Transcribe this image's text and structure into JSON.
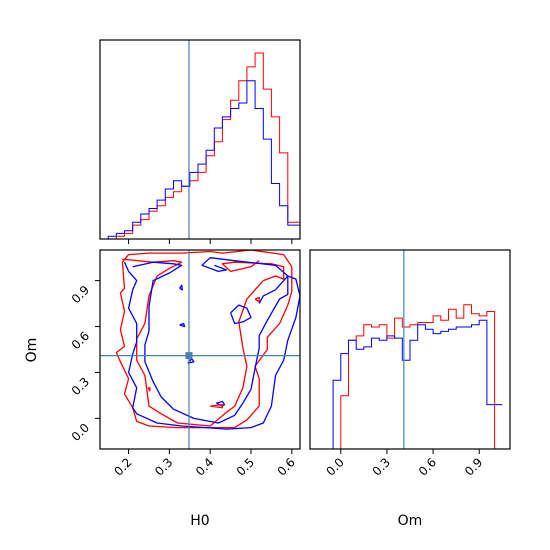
{
  "chart_data": {
    "type": "corner",
    "params": [
      {
        "name": "H0",
        "range": [
          0.13,
          0.62
        ],
        "ticks": [
          "0.2",
          "0.3",
          "0.4",
          "0.5",
          "0.6"
        ],
        "tick_values": [
          0.2,
          0.3,
          0.4,
          0.5,
          0.6
        ],
        "truth": 0.348
      },
      {
        "name": "Om",
        "range": [
          -0.2,
          1.1
        ],
        "ticks": [
          "0.0",
          "0.3",
          "0.6",
          "0.9"
        ],
        "tick_values": [
          0.0,
          0.3,
          0.6,
          0.9
        ],
        "truth": 0.41
      }
    ],
    "colors": {
      "red_series": "#ff0000",
      "blue_series": "#0000ff",
      "truth_line": "#4682b4"
    },
    "hist_H0": {
      "bin_edges": [
        0.13,
        0.15,
        0.17,
        0.19,
        0.21,
        0.23,
        0.25,
        0.27,
        0.29,
        0.31,
        0.33,
        0.35,
        0.37,
        0.39,
        0.41,
        0.43,
        0.45,
        0.47,
        0.49,
        0.51,
        0.53,
        0.55,
        0.57,
        0.59,
        0.61,
        0.62
      ],
      "red": [
        0,
        0,
        1,
        2,
        5,
        7,
        10,
        12,
        15,
        17,
        19,
        21,
        24,
        30,
        35,
        43,
        50,
        57,
        62,
        67,
        54,
        44,
        31,
        6,
        6
      ],
      "blue": [
        0,
        1,
        2,
        3,
        6,
        9,
        11,
        14,
        18,
        21,
        19,
        24,
        27,
        32,
        40,
        44,
        47,
        49,
        57,
        47,
        36,
        20,
        12,
        5,
        5
      ]
    },
    "hist_Om": {
      "bin_edges": [
        -0.1,
        -0.05,
        0.0,
        0.05,
        0.1,
        0.15,
        0.2,
        0.25,
        0.3,
        0.35,
        0.4,
        0.45,
        0.5,
        0.55,
        0.6,
        0.65,
        0.7,
        0.75,
        0.8,
        0.85,
        0.9,
        0.95,
        1.0,
        1.05
      ],
      "red": [
        0,
        0,
        1.2,
        2.45,
        2.55,
        2.8,
        2.75,
        2.8,
        2.5,
        2.95,
        2.75,
        2.8,
        2.85,
        2.85,
        3.0,
        2.9,
        3.15,
        2.95,
        3.25,
        3.05,
        3.0,
        3.1,
        0
      ],
      "blue": [
        0,
        1.55,
        2.15,
        2.45,
        2.25,
        2.3,
        2.5,
        2.45,
        2.55,
        2.5,
        2.0,
        2.45,
        2.8,
        2.7,
        2.6,
        2.65,
        2.7,
        2.75,
        2.75,
        2.8,
        2.9,
        1.0,
        1.0
      ]
    },
    "contours_2d": [
      {
        "series": "red",
        "points": [
          [
            0.185,
            1.04
          ],
          [
            0.26,
            1.02
          ],
          [
            0.31,
            1.03
          ],
          [
            0.33,
            1.02
          ],
          [
            0.3,
            0.98
          ],
          [
            0.27,
            0.93
          ],
          [
            0.25,
            0.8
          ],
          [
            0.24,
            0.62
          ],
          [
            0.22,
            0.52
          ],
          [
            0.22,
            0.38
          ],
          [
            0.24,
            0.28
          ],
          [
            0.25,
            0.08
          ],
          [
            0.28,
            0.03
          ],
          [
            0.32,
            -0.03
          ],
          [
            0.4,
            -0.05
          ],
          [
            0.44,
            0.04
          ],
          [
            0.46,
            0.08
          ],
          [
            0.48,
            0.2
          ],
          [
            0.49,
            0.34
          ],
          [
            0.48,
            0.46
          ],
          [
            0.47,
            0.63
          ],
          [
            0.49,
            0.78
          ],
          [
            0.53,
            0.9
          ],
          [
            0.56,
            0.93
          ],
          [
            0.58,
            0.91
          ],
          [
            0.58,
            0.99
          ],
          [
            0.55,
            1.01
          ],
          [
            0.46,
            1.02
          ],
          [
            0.43,
            1.01
          ],
          [
            0.45,
            0.96
          ],
          [
            0.5,
            0.99
          ],
          [
            0.52,
            1.03
          ]
        ]
      },
      {
        "series": "red",
        "points": [
          [
            0.2,
            1.07
          ],
          [
            0.185,
            1.02
          ],
          [
            0.19,
            0.85
          ],
          [
            0.18,
            0.82
          ],
          [
            0.19,
            0.7
          ],
          [
            0.18,
            0.58
          ],
          [
            0.19,
            0.47
          ],
          [
            0.17,
            0.43
          ],
          [
            0.18,
            0.37
          ],
          [
            0.2,
            0.26
          ],
          [
            0.19,
            0.16
          ],
          [
            0.21,
            0.07
          ],
          [
            0.22,
            -0.02
          ],
          [
            0.25,
            -0.05
          ],
          [
            0.32,
            -0.06
          ],
          [
            0.4,
            -0.06
          ],
          [
            0.46,
            -0.06
          ],
          [
            0.49,
            -0.01
          ],
          [
            0.52,
            0.08
          ],
          [
            0.52,
            0.26
          ],
          [
            0.51,
            0.34
          ],
          [
            0.54,
            0.45
          ],
          [
            0.54,
            0.53
          ],
          [
            0.57,
            0.62
          ],
          [
            0.59,
            0.74
          ],
          [
            0.6,
            0.83
          ],
          [
            0.6,
            0.99
          ],
          [
            0.58,
            1.07
          ],
          [
            0.5,
            1.1
          ],
          [
            0.43,
            1.08
          ],
          [
            0.4,
            1.09
          ],
          [
            0.33,
            1.08
          ],
          [
            0.25,
            1.08
          ],
          [
            0.2,
            1.07
          ]
        ]
      },
      {
        "series": "blue",
        "points": [
          [
            0.21,
            0.99
          ],
          [
            0.26,
            1.02
          ],
          [
            0.31,
            1.01
          ],
          [
            0.33,
            1.0
          ],
          [
            0.3,
            0.95
          ],
          [
            0.26,
            0.9
          ],
          [
            0.25,
            0.73
          ],
          [
            0.25,
            0.57
          ],
          [
            0.24,
            0.48
          ],
          [
            0.24,
            0.37
          ],
          [
            0.26,
            0.24
          ],
          [
            0.28,
            0.14
          ],
          [
            0.31,
            0.06
          ],
          [
            0.36,
            0.0
          ],
          [
            0.42,
            -0.03
          ],
          [
            0.46,
            0.02
          ],
          [
            0.48,
            0.1
          ],
          [
            0.5,
            0.19
          ],
          [
            0.51,
            0.33
          ],
          [
            0.52,
            0.46
          ],
          [
            0.52,
            0.54
          ],
          [
            0.54,
            0.64
          ],
          [
            0.57,
            0.78
          ],
          [
            0.59,
            0.81
          ],
          [
            0.59,
            0.93
          ],
          [
            0.56,
            1.0
          ],
          [
            0.46,
            1.03
          ],
          [
            0.4,
            1.05
          ],
          [
            0.38,
            1.0
          ],
          [
            0.42,
            0.96
          ],
          [
            0.44,
            0.97
          ],
          [
            0.41,
            1.0
          ]
        ]
      },
      {
        "series": "blue",
        "points": [
          [
            0.19,
            1.02
          ],
          [
            0.2,
            0.96
          ],
          [
            0.22,
            0.9
          ],
          [
            0.21,
            0.84
          ],
          [
            0.2,
            0.72
          ],
          [
            0.22,
            0.62
          ],
          [
            0.22,
            0.5
          ],
          [
            0.21,
            0.42
          ],
          [
            0.2,
            0.3
          ],
          [
            0.22,
            0.2
          ],
          [
            0.21,
            0.07
          ],
          [
            0.22,
            0.03
          ],
          [
            0.27,
            -0.03
          ],
          [
            0.33,
            -0.05
          ],
          [
            0.39,
            -0.06
          ],
          [
            0.44,
            -0.07
          ],
          [
            0.5,
            -0.06
          ],
          [
            0.53,
            -0.03
          ],
          [
            0.55,
            0.08
          ],
          [
            0.56,
            0.28
          ],
          [
            0.58,
            0.38
          ],
          [
            0.59,
            0.51
          ],
          [
            0.61,
            0.66
          ],
          [
            0.62,
            0.8
          ],
          [
            0.61,
            0.91
          ],
          [
            0.59,
            0.93
          ],
          [
            0.58,
            0.9
          ],
          [
            0.56,
            0.84
          ],
          [
            0.53,
            0.8
          ],
          [
            0.52,
            0.75
          ]
        ]
      },
      {
        "series": "blue",
        "points": [
          [
            0.45,
            0.69
          ],
          [
            0.47,
            0.74
          ],
          [
            0.49,
            0.72
          ],
          [
            0.5,
            0.66
          ],
          [
            0.48,
            0.63
          ],
          [
            0.46,
            0.62
          ],
          [
            0.45,
            0.69
          ]
        ]
      },
      {
        "series": "blue",
        "points": [
          [
            0.415,
            0.1
          ],
          [
            0.43,
            0.11
          ],
          [
            0.435,
            0.09
          ],
          [
            0.43,
            0.08
          ],
          [
            0.415,
            0.1
          ]
        ]
      },
      {
        "series": "blue",
        "points": [
          [
            0.345,
            0.36
          ],
          [
            0.355,
            0.39
          ],
          [
            0.36,
            0.37
          ],
          [
            0.345,
            0.36
          ]
        ]
      },
      {
        "series": "red",
        "points": [
          [
            0.4,
            0.08
          ],
          [
            0.43,
            0.09
          ],
          [
            0.43,
            0.07
          ],
          [
            0.4,
            0.08
          ]
        ]
      },
      {
        "series": "red",
        "points": [
          [
            0.51,
            0.78
          ],
          [
            0.52,
            0.79
          ],
          [
            0.52,
            0.76
          ],
          [
            0.51,
            0.78
          ]
        ]
      },
      {
        "series": "red",
        "points": [
          [
            0.248,
            0.2
          ],
          [
            0.252,
            0.2
          ],
          [
            0.252,
            0.18
          ],
          [
            0.248,
            0.2
          ]
        ]
      },
      {
        "series": "blue",
        "points": [
          [
            0.325,
            0.85
          ],
          [
            0.33,
            0.87
          ],
          [
            0.332,
            0.84
          ],
          [
            0.325,
            0.85
          ]
        ]
      },
      {
        "series": "blue",
        "points": [
          [
            0.325,
            0.61
          ],
          [
            0.335,
            0.62
          ],
          [
            0.337,
            0.6
          ],
          [
            0.325,
            0.61
          ]
        ]
      }
    ]
  }
}
